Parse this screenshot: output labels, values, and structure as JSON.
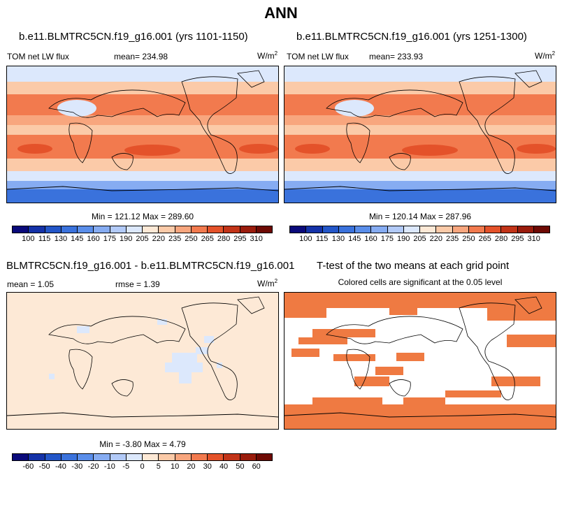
{
  "title": "ANN",
  "panels": [
    {
      "title": "b.e11.BLMTRC5CN.f19_g16.001 (yrs 1101-1150)",
      "left_label": "TOM net LW flux",
      "center_label": "mean= 234.98",
      "unit": "W/m",
      "unit_sup": "2",
      "minmax": "Min = 121.12 Max = 289.60"
    },
    {
      "title": "b.e11.BLMTRC5CN.f19_g16.001 (yrs 1251-1300)",
      "left_label": "TOM net LW flux",
      "center_label": "mean= 233.93",
      "unit": "W/m",
      "unit_sup": "2",
      "minmax": "Min = 120.14 Max = 287.96"
    },
    {
      "title": "BLMTRC5CN.f19_g16.001 - b.e11.BLMTRC5CN.f19_g16.001",
      "left_label": "mean =   1.05",
      "center_label": "rmse =   1.39",
      "unit": "W/m",
      "unit_sup": "2",
      "minmax": "Min =  -3.80 Max =   4.79"
    },
    {
      "title": "T-test of the two means at each grid point",
      "subtitle": "Colored cells are significant at the 0.05 level"
    }
  ],
  "colorbars": {
    "flux_ticks": [
      "100",
      "115",
      "130",
      "145",
      "160",
      "175",
      "190",
      "205",
      "220",
      "235",
      "250",
      "265",
      "280",
      "295",
      "310"
    ],
    "diff_ticks": [
      "-60",
      "-50",
      "-40",
      "-30",
      "-20",
      "-10",
      "-5",
      "0",
      "5",
      "10",
      "20",
      "30",
      "40",
      "50",
      "60"
    ],
    "colors": [
      "#0a0a7a",
      "#1432a8",
      "#2356c8",
      "#3a72dc",
      "#5a8eea",
      "#86acf2",
      "#b2caf8",
      "#dce8fc",
      "#fde9d6",
      "#fbcaa8",
      "#f8a67e",
      "#f27a4e",
      "#e4522a",
      "#c23418",
      "#9a1c0c",
      "#6e0a04"
    ]
  },
  "map_colors": {
    "ocean_pale": "#fde9d6",
    "significant": "#ef7a42"
  }
}
